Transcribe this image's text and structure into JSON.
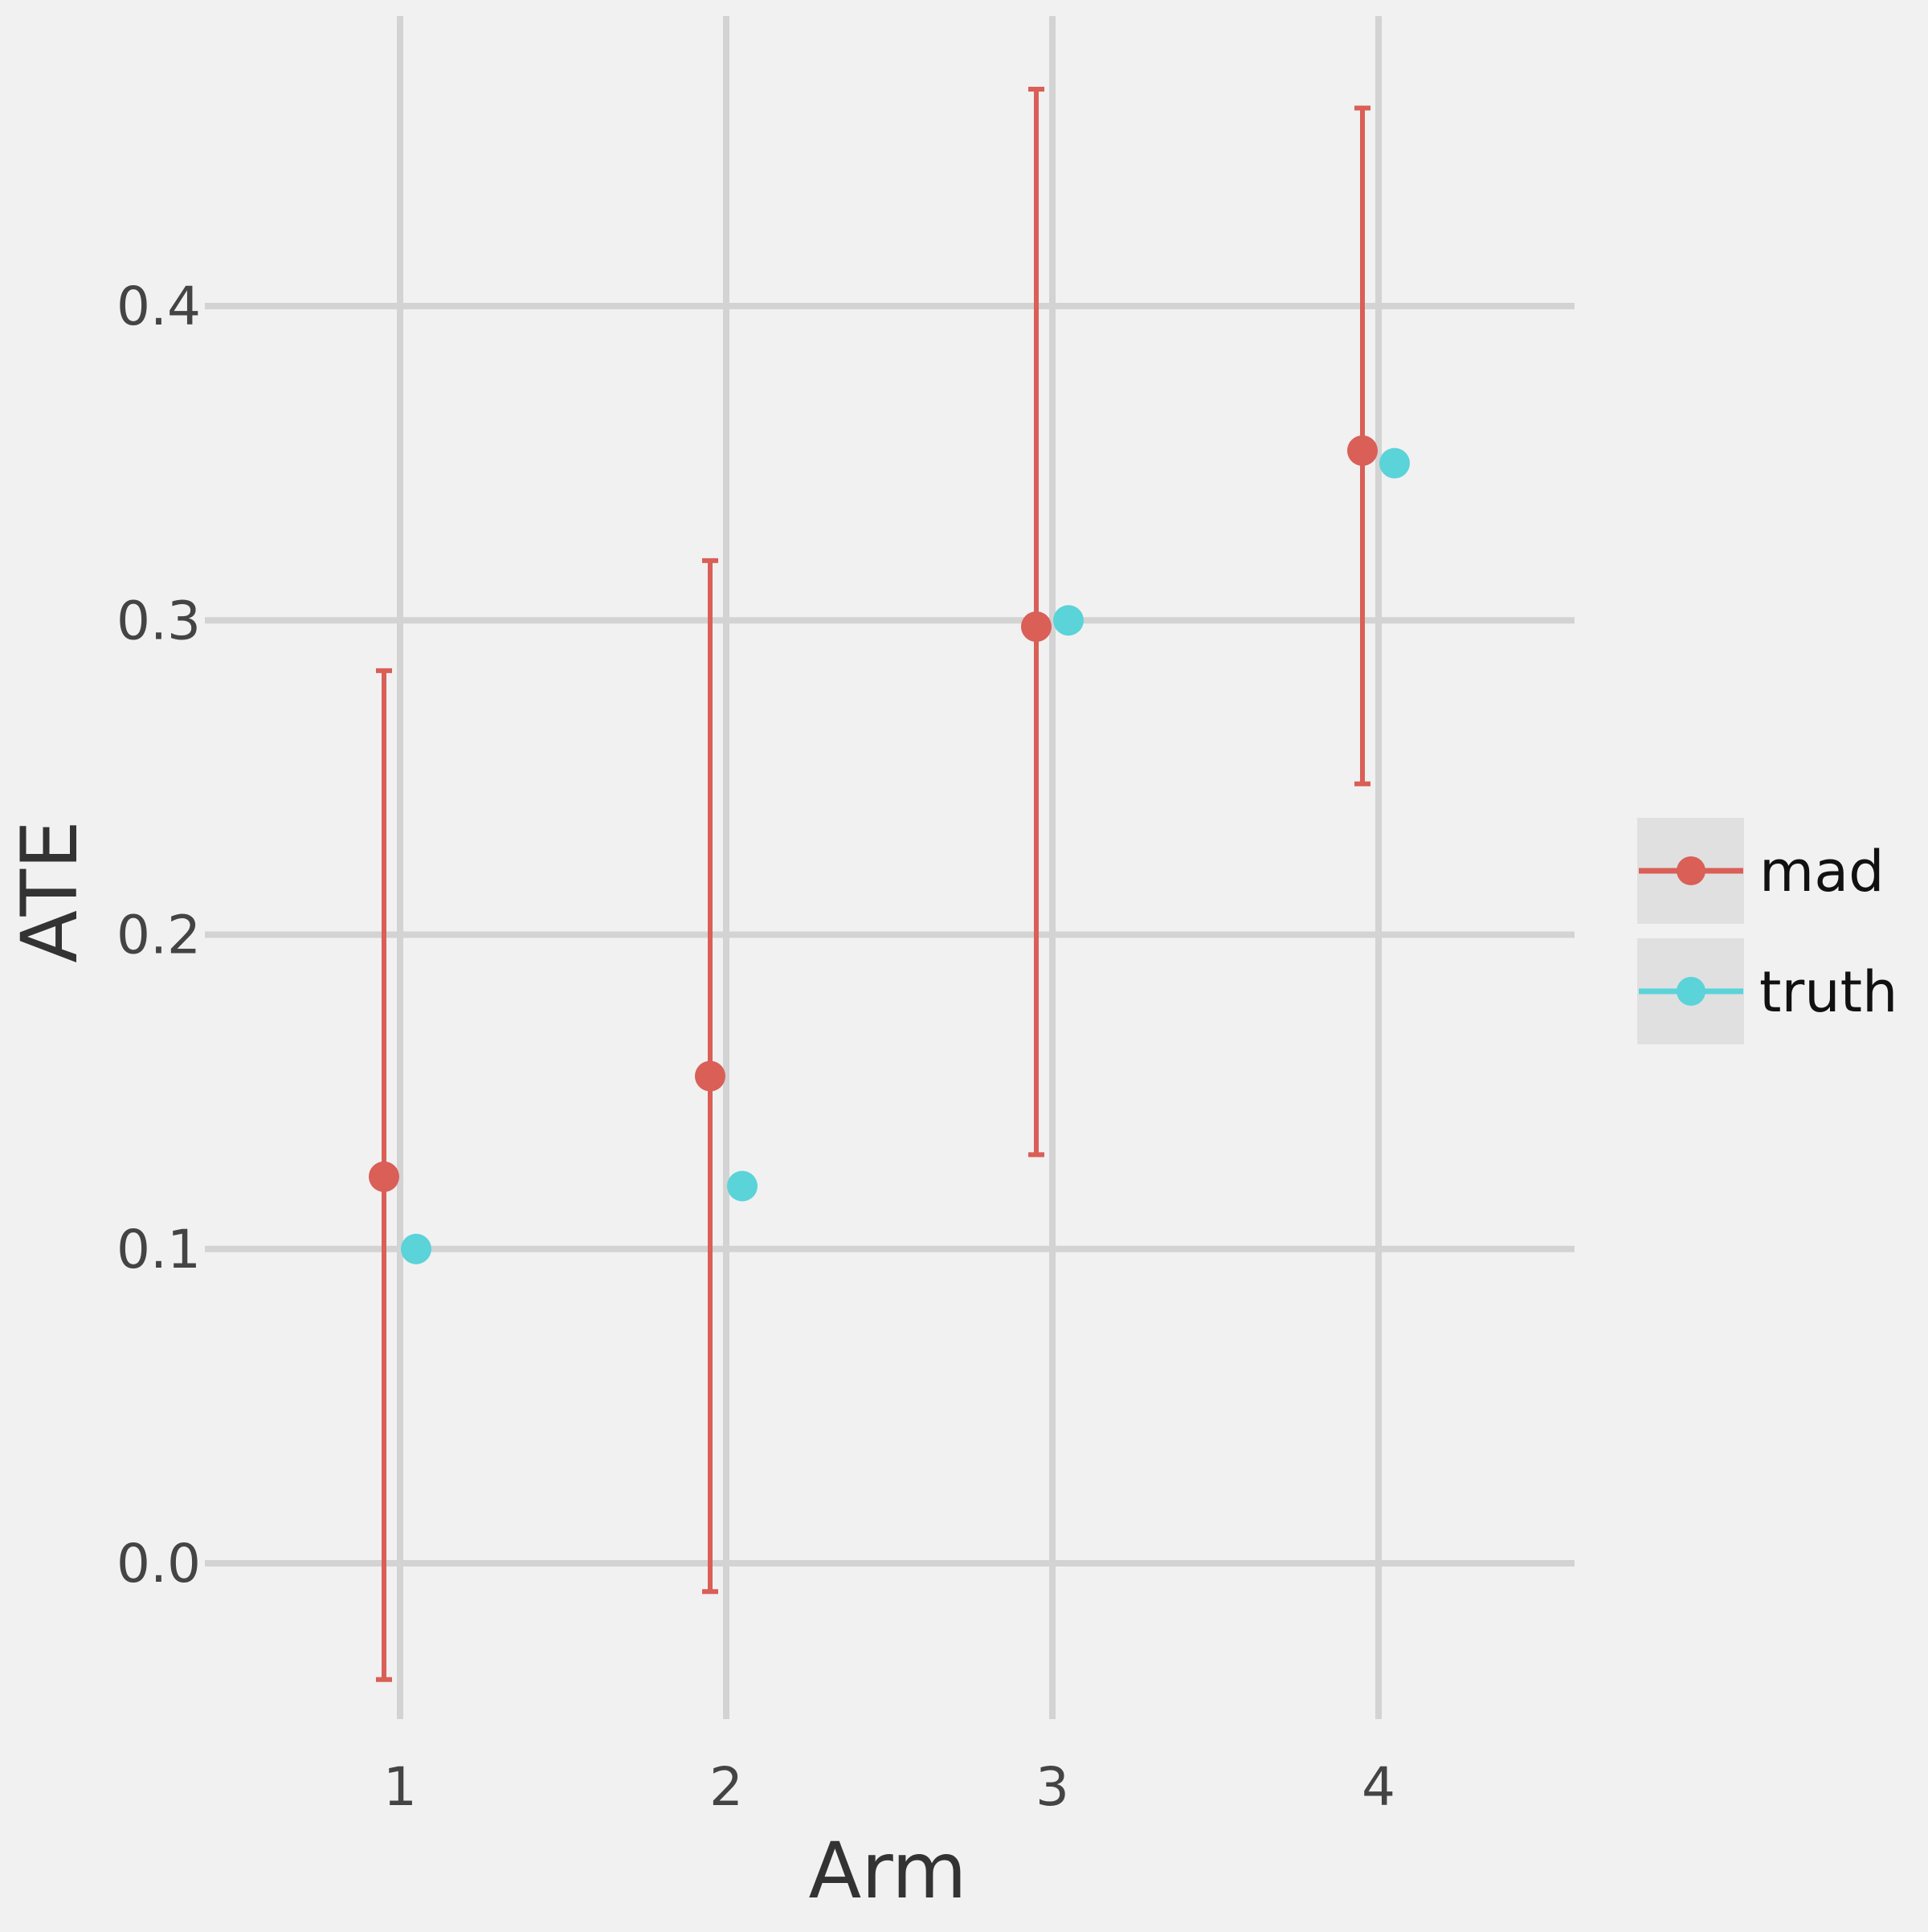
{
  "chart_data": {
    "type": "scatter",
    "xlabel": "Arm",
    "ylabel": "ATE",
    "x_categories": [
      "1",
      "2",
      "3",
      "4"
    ],
    "ylim": [
      -0.055,
      0.5
    ],
    "y_ticks": [
      0.0,
      0.1,
      0.2,
      0.3,
      0.4
    ],
    "y_tick_labels": [
      "0.0",
      "0.1",
      "0.2",
      "0.3",
      "0.4"
    ],
    "grid": true,
    "legend_position": "right",
    "series": [
      {
        "name": "mad",
        "color": "#d95f57",
        "points": [
          {
            "x": "1",
            "y": 0.123,
            "lower": -0.037,
            "upper": 0.284
          },
          {
            "x": "2",
            "y": 0.155,
            "lower": -0.009,
            "upper": 0.319
          },
          {
            "x": "3",
            "y": 0.298,
            "lower": 0.13,
            "upper": 0.469
          },
          {
            "x": "4",
            "y": 0.354,
            "lower": 0.248,
            "upper": 0.463
          }
        ]
      },
      {
        "name": "truth",
        "color": "#5ad3d9",
        "points": [
          {
            "x": "1",
            "y": 0.1
          },
          {
            "x": "2",
            "y": 0.12
          },
          {
            "x": "3",
            "y": 0.3
          },
          {
            "x": "4",
            "y": 0.35
          }
        ]
      }
    ]
  }
}
